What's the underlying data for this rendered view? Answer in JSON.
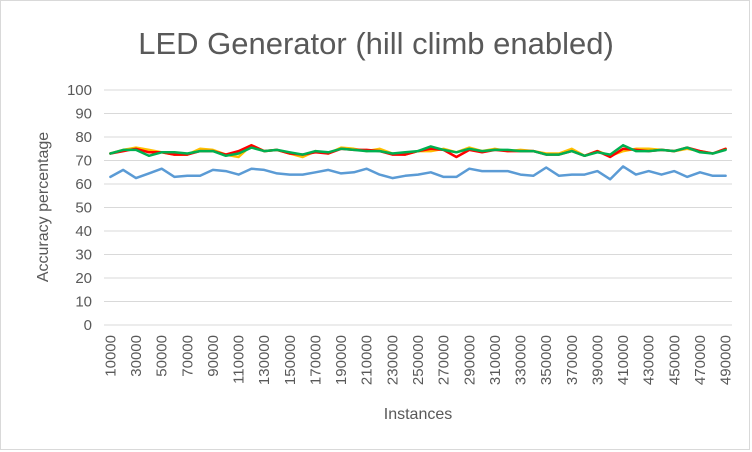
{
  "chart_data": {
    "type": "line",
    "title": "LED Generator (hill climb enabled)",
    "xlabel": "Instances",
    "ylabel": "Accuracy percentage",
    "ylim": [
      0,
      100
    ],
    "yticks": [
      0,
      10,
      20,
      30,
      40,
      50,
      60,
      70,
      80,
      90,
      100
    ],
    "x": [
      10000,
      20000,
      30000,
      40000,
      50000,
      60000,
      70000,
      80000,
      90000,
      100000,
      110000,
      120000,
      130000,
      140000,
      150000,
      160000,
      170000,
      180000,
      190000,
      200000,
      210000,
      220000,
      230000,
      240000,
      250000,
      260000,
      270000,
      280000,
      290000,
      300000,
      310000,
      320000,
      330000,
      340000,
      350000,
      360000,
      370000,
      380000,
      390000,
      400000,
      410000,
      420000,
      430000,
      440000,
      450000,
      460000,
      470000,
      480000,
      490000
    ],
    "xtick_labels": [
      "10000",
      "30000",
      "50000",
      "70000",
      "90000",
      "110000",
      "130000",
      "150000",
      "170000",
      "190000",
      "210000",
      "230000",
      "250000",
      "270000",
      "290000",
      "310000",
      "330000",
      "350000",
      "370000",
      "390000",
      "410000",
      "430000",
      "450000",
      "470000",
      "490000"
    ],
    "grid": true,
    "legend": "none",
    "series": [
      {
        "color": "#ffc000",
        "values": [
          73,
          74.5,
          75.5,
          74.5,
          73.5,
          72.5,
          72.5,
          75,
          74.5,
          72.5,
          71.5,
          76.5,
          74,
          74.5,
          73,
          71.5,
          74,
          73,
          75.5,
          75,
          74,
          75,
          73,
          72.5,
          74,
          74,
          75,
          73.5,
          75.5,
          74,
          75,
          74,
          74.5,
          74,
          73,
          73,
          75,
          72,
          74,
          72,
          74,
          75,
          75,
          74.5,
          74,
          75,
          74,
          73,
          75
        ]
      },
      {
        "color": "#ff0000",
        "values": [
          73,
          74,
          75,
          73.5,
          73.5,
          72.5,
          72.5,
          74,
          74,
          72.5,
          74,
          76.5,
          74,
          74.5,
          73,
          72.5,
          73.5,
          73,
          75,
          74.5,
          74.5,
          74,
          72.5,
          72.5,
          74,
          75,
          74.5,
          71.5,
          74.5,
          73.5,
          74.5,
          74,
          74,
          74,
          72.5,
          72.5,
          74,
          72,
          74,
          71.5,
          75,
          74.5,
          74,
          74.5,
          74,
          75.5,
          74,
          73,
          75
        ]
      },
      {
        "color": "#00b050",
        "values": [
          73,
          74.5,
          74.5,
          72,
          73.5,
          73.5,
          73,
          74,
          74,
          72,
          73,
          75.5,
          74,
          74.5,
          73.5,
          72.5,
          74,
          73.5,
          75,
          74.5,
          74,
          74,
          73,
          73.5,
          74,
          76,
          74.5,
          73.5,
          75,
          74,
          74.5,
          74.5,
          74,
          74,
          72.5,
          72.5,
          74,
          72,
          73.5,
          72.5,
          76.5,
          74,
          74,
          74.5,
          74,
          75.5,
          73.5,
          73,
          74.5
        ]
      },
      {
        "color": "#5b9bd5",
        "values": [
          63,
          66,
          62.5,
          64.5,
          66.5,
          63,
          63.5,
          63.5,
          66,
          65.5,
          64,
          66.5,
          66,
          64.5,
          64,
          64,
          65,
          66,
          64.5,
          65,
          66.5,
          64,
          62.5,
          63.5,
          64,
          65,
          63,
          63,
          66.5,
          65.5,
          65.5,
          65.5,
          64,
          63.5,
          67,
          63.5,
          64,
          64,
          65.5,
          62,
          67.5,
          64,
          65.5,
          64,
          65.5,
          63,
          65,
          63.5,
          63.5
        ]
      }
    ]
  }
}
